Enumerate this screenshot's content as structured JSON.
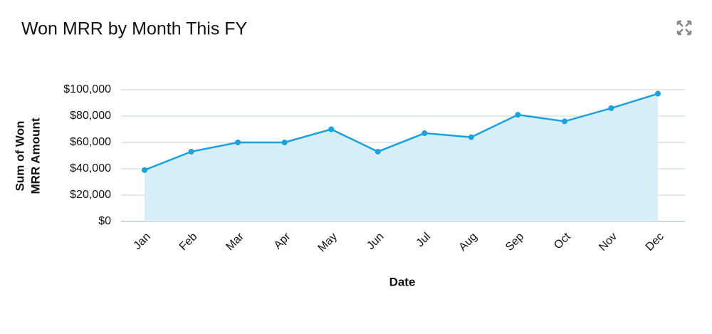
{
  "chart_data": {
    "type": "area",
    "title": "Won MRR by Month This FY",
    "categories": [
      "Jan",
      "Feb",
      "Mar",
      "Apr",
      "May",
      "Jun",
      "Jul",
      "Aug",
      "Sep",
      "Oct",
      "Nov",
      "Dec"
    ],
    "values": [
      39000,
      53000,
      60000,
      60000,
      70000,
      53000,
      67000,
      64000,
      81000,
      76000,
      86000,
      97000
    ],
    "color": "#1ba1dc",
    "fill": "#d6eef8",
    "x_label": "Date",
    "y_label": [
      "Sum of Won",
      "MRR Amount"
    ],
    "ylim": [
      0,
      100000
    ],
    "yticks": [
      {
        "value": 0,
        "label": "$0"
      },
      {
        "value": 20000,
        "label": "$20,000"
      },
      {
        "value": 40000,
        "label": "$40,000"
      },
      {
        "value": 60000,
        "label": "$60,000"
      },
      {
        "value": 80000,
        "label": "$80,000"
      },
      {
        "value": 100000,
        "label": "$100,000"
      }
    ],
    "grid": true
  }
}
